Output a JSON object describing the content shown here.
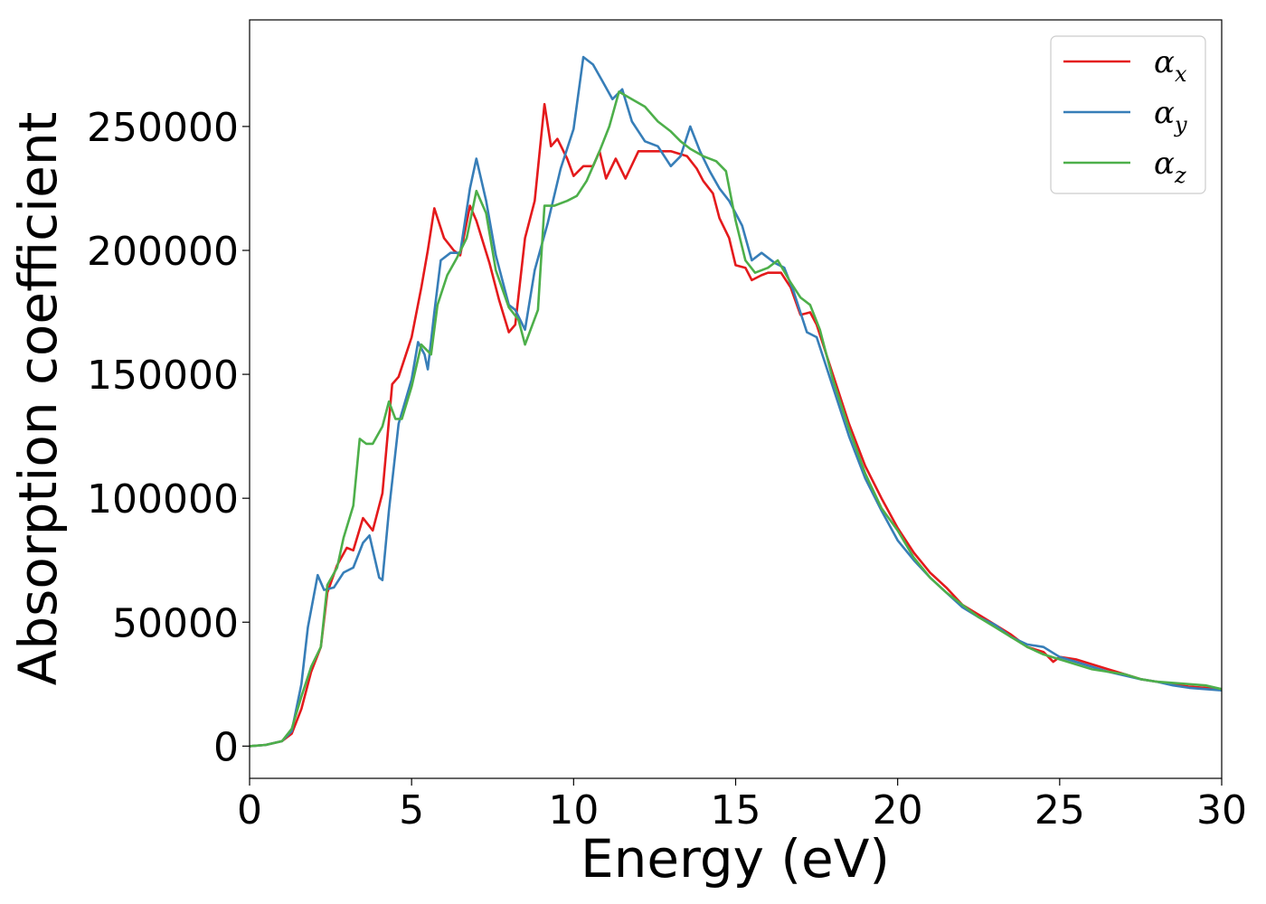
{
  "chart_data": {
    "type": "line",
    "title": "",
    "xlabel": "Energy (eV)",
    "ylabel": "Absorption coefficient",
    "xlim": [
      0,
      30
    ],
    "ylim": [
      -13000,
      293000
    ],
    "xticks": [
      0,
      5,
      10,
      15,
      20,
      25,
      30
    ],
    "yticks": [
      0,
      50000,
      100000,
      150000,
      200000,
      250000
    ],
    "grid": false,
    "legend_position": "top-right",
    "series": [
      {
        "name": "α",
        "subscript": "x",
        "color": "#e41a1c",
        "points": [
          [
            0,
            0
          ],
          [
            0.5,
            500
          ],
          [
            1.0,
            2000
          ],
          [
            1.3,
            5000
          ],
          [
            1.6,
            15000
          ],
          [
            1.9,
            30000
          ],
          [
            2.2,
            40000
          ],
          [
            2.4,
            62000
          ],
          [
            2.7,
            73000
          ],
          [
            3.0,
            80000
          ],
          [
            3.2,
            79000
          ],
          [
            3.5,
            92000
          ],
          [
            3.8,
            87000
          ],
          [
            4.1,
            102000
          ],
          [
            4.4,
            146000
          ],
          [
            4.6,
            149000
          ],
          [
            5.0,
            165000
          ],
          [
            5.3,
            185000
          ],
          [
            5.5,
            200000
          ],
          [
            5.7,
            217000
          ],
          [
            6.0,
            205000
          ],
          [
            6.3,
            200000
          ],
          [
            6.5,
            198000
          ],
          [
            6.8,
            218000
          ],
          [
            7.0,
            212000
          ],
          [
            7.4,
            195000
          ],
          [
            7.7,
            180000
          ],
          [
            8.0,
            167000
          ],
          [
            8.2,
            170000
          ],
          [
            8.5,
            205000
          ],
          [
            8.8,
            220000
          ],
          [
            9.1,
            259000
          ],
          [
            9.3,
            242000
          ],
          [
            9.5,
            245000
          ],
          [
            9.8,
            237000
          ],
          [
            10.0,
            230000
          ],
          [
            10.3,
            234000
          ],
          [
            10.6,
            234000
          ],
          [
            10.8,
            240000
          ],
          [
            11.0,
            229000
          ],
          [
            11.3,
            237000
          ],
          [
            11.6,
            229000
          ],
          [
            12.0,
            240000
          ],
          [
            12.5,
            240000
          ],
          [
            13.0,
            240000
          ],
          [
            13.5,
            238000
          ],
          [
            13.8,
            233000
          ],
          [
            14.0,
            228000
          ],
          [
            14.3,
            223000
          ],
          [
            14.5,
            213000
          ],
          [
            14.8,
            205000
          ],
          [
            15.0,
            194000
          ],
          [
            15.3,
            193000
          ],
          [
            15.5,
            188000
          ],
          [
            15.8,
            190000
          ],
          [
            16.0,
            191000
          ],
          [
            16.4,
            191000
          ],
          [
            16.7,
            185000
          ],
          [
            17.0,
            174000
          ],
          [
            17.3,
            175000
          ],
          [
            17.5,
            170000
          ],
          [
            18.0,
            150000
          ],
          [
            18.5,
            130000
          ],
          [
            19.0,
            113000
          ],
          [
            19.5,
            100000
          ],
          [
            20.0,
            88000
          ],
          [
            20.5,
            78000
          ],
          [
            21.0,
            70000
          ],
          [
            21.5,
            64000
          ],
          [
            22.0,
            57000
          ],
          [
            22.5,
            53000
          ],
          [
            23.0,
            49000
          ],
          [
            23.5,
            45000
          ],
          [
            24.0,
            40000
          ],
          [
            24.5,
            38000
          ],
          [
            24.8,
            34000
          ],
          [
            25.0,
            36000
          ],
          [
            25.5,
            35000
          ],
          [
            26.0,
            33000
          ],
          [
            26.5,
            31000
          ],
          [
            27.0,
            29000
          ],
          [
            27.5,
            27000
          ],
          [
            28.0,
            26000
          ],
          [
            28.5,
            25000
          ],
          [
            29.0,
            24000
          ],
          [
            29.5,
            23500
          ],
          [
            30.0,
            23000
          ]
        ]
      },
      {
        "name": "α",
        "subscript": "y",
        "color": "#377eb8",
        "points": [
          [
            0,
            0
          ],
          [
            0.5,
            500
          ],
          [
            1.0,
            2000
          ],
          [
            1.3,
            6000
          ],
          [
            1.6,
            25000
          ],
          [
            1.8,
            48000
          ],
          [
            2.1,
            69000
          ],
          [
            2.3,
            63000
          ],
          [
            2.6,
            64000
          ],
          [
            2.9,
            70000
          ],
          [
            3.2,
            72000
          ],
          [
            3.5,
            82000
          ],
          [
            3.7,
            85000
          ],
          [
            4.0,
            68000
          ],
          [
            4.1,
            67000
          ],
          [
            4.3,
            95000
          ],
          [
            4.6,
            130000
          ],
          [
            5.0,
            148000
          ],
          [
            5.2,
            163000
          ],
          [
            5.4,
            158000
          ],
          [
            5.5,
            152000
          ],
          [
            5.7,
            175000
          ],
          [
            5.9,
            196000
          ],
          [
            6.2,
            199000
          ],
          [
            6.5,
            199000
          ],
          [
            6.8,
            225000
          ],
          [
            7.0,
            237000
          ],
          [
            7.3,
            220000
          ],
          [
            7.6,
            198000
          ],
          [
            8.0,
            178000
          ],
          [
            8.2,
            176000
          ],
          [
            8.5,
            168000
          ],
          [
            8.8,
            192000
          ],
          [
            9.2,
            211000
          ],
          [
            9.6,
            233000
          ],
          [
            10.0,
            249000
          ],
          [
            10.3,
            278000
          ],
          [
            10.6,
            275000
          ],
          [
            10.9,
            268000
          ],
          [
            11.2,
            261000
          ],
          [
            11.5,
            265000
          ],
          [
            11.8,
            252000
          ],
          [
            12.2,
            244000
          ],
          [
            12.6,
            242000
          ],
          [
            13.0,
            234000
          ],
          [
            13.3,
            238000
          ],
          [
            13.6,
            250000
          ],
          [
            13.9,
            240000
          ],
          [
            14.2,
            232000
          ],
          [
            14.5,
            225000
          ],
          [
            14.8,
            220000
          ],
          [
            15.2,
            210000
          ],
          [
            15.5,
            196000
          ],
          [
            15.8,
            199000
          ],
          [
            16.2,
            195000
          ],
          [
            16.5,
            193000
          ],
          [
            16.8,
            183000
          ],
          [
            17.2,
            167000
          ],
          [
            17.5,
            165000
          ],
          [
            18.0,
            145000
          ],
          [
            18.5,
            125000
          ],
          [
            19.0,
            108000
          ],
          [
            19.5,
            95000
          ],
          [
            20.0,
            83000
          ],
          [
            20.5,
            75000
          ],
          [
            21.0,
            68000
          ],
          [
            21.5,
            62000
          ],
          [
            22.0,
            56000
          ],
          [
            22.5,
            52000
          ],
          [
            23.0,
            49000
          ],
          [
            23.5,
            44000
          ],
          [
            24.0,
            41000
          ],
          [
            24.5,
            40000
          ],
          [
            25.0,
            36000
          ],
          [
            25.5,
            34000
          ],
          [
            26.0,
            32000
          ],
          [
            26.5,
            30000
          ],
          [
            27.0,
            28500
          ],
          [
            27.5,
            27000
          ],
          [
            28.0,
            26000
          ],
          [
            28.5,
            24500
          ],
          [
            29.0,
            23500
          ],
          [
            29.5,
            23000
          ],
          [
            30.0,
            22500
          ]
        ]
      },
      {
        "name": "α",
        "subscript": "z",
        "color": "#4daf4a",
        "points": [
          [
            0,
            0
          ],
          [
            0.5,
            500
          ],
          [
            1.0,
            2000
          ],
          [
            1.3,
            7000
          ],
          [
            1.6,
            20000
          ],
          [
            1.9,
            32000
          ],
          [
            2.2,
            40000
          ],
          [
            2.4,
            65000
          ],
          [
            2.7,
            72000
          ],
          [
            2.9,
            84000
          ],
          [
            3.2,
            97000
          ],
          [
            3.4,
            124000
          ],
          [
            3.6,
            122000
          ],
          [
            3.8,
            122000
          ],
          [
            4.1,
            129000
          ],
          [
            4.3,
            139000
          ],
          [
            4.5,
            132000
          ],
          [
            4.7,
            132000
          ],
          [
            5.0,
            145000
          ],
          [
            5.3,
            162000
          ],
          [
            5.6,
            158000
          ],
          [
            5.8,
            178000
          ],
          [
            6.1,
            190000
          ],
          [
            6.4,
            197000
          ],
          [
            6.7,
            205000
          ],
          [
            7.0,
            224000
          ],
          [
            7.3,
            215000
          ],
          [
            7.6,
            192000
          ],
          [
            8.0,
            177000
          ],
          [
            8.3,
            172000
          ],
          [
            8.5,
            162000
          ],
          [
            8.9,
            176000
          ],
          [
            9.1,
            218000
          ],
          [
            9.4,
            218000
          ],
          [
            9.8,
            220000
          ],
          [
            10.1,
            222000
          ],
          [
            10.4,
            228000
          ],
          [
            10.8,
            240000
          ],
          [
            11.1,
            250000
          ],
          [
            11.4,
            264000
          ],
          [
            11.8,
            261000
          ],
          [
            12.2,
            258000
          ],
          [
            12.6,
            252000
          ],
          [
            13.0,
            248000
          ],
          [
            13.3,
            244000
          ],
          [
            13.6,
            241000
          ],
          [
            14.0,
            238000
          ],
          [
            14.4,
            236000
          ],
          [
            14.7,
            232000
          ],
          [
            15.0,
            212000
          ],
          [
            15.3,
            196000
          ],
          [
            15.6,
            191000
          ],
          [
            16.0,
            193000
          ],
          [
            16.3,
            196000
          ],
          [
            16.7,
            187000
          ],
          [
            17.0,
            181000
          ],
          [
            17.3,
            178000
          ],
          [
            17.6,
            168000
          ],
          [
            18.0,
            148000
          ],
          [
            18.5,
            128000
          ],
          [
            19.0,
            110000
          ],
          [
            19.5,
            96000
          ],
          [
            20.0,
            87000
          ],
          [
            20.5,
            76000
          ],
          [
            21.0,
            68000
          ],
          [
            21.5,
            62000
          ],
          [
            22.0,
            57000
          ],
          [
            22.5,
            52000
          ],
          [
            23.0,
            48000
          ],
          [
            23.5,
            44000
          ],
          [
            24.0,
            40000
          ],
          [
            24.5,
            37000
          ],
          [
            25.0,
            35000
          ],
          [
            25.5,
            33000
          ],
          [
            26.0,
            31000
          ],
          [
            26.5,
            30000
          ],
          [
            27.0,
            29000
          ],
          [
            27.5,
            27000
          ],
          [
            28.0,
            26000
          ],
          [
            28.5,
            25500
          ],
          [
            29.0,
            25000
          ],
          [
            29.5,
            24500
          ],
          [
            30.0,
            23000
          ]
        ]
      }
    ]
  }
}
